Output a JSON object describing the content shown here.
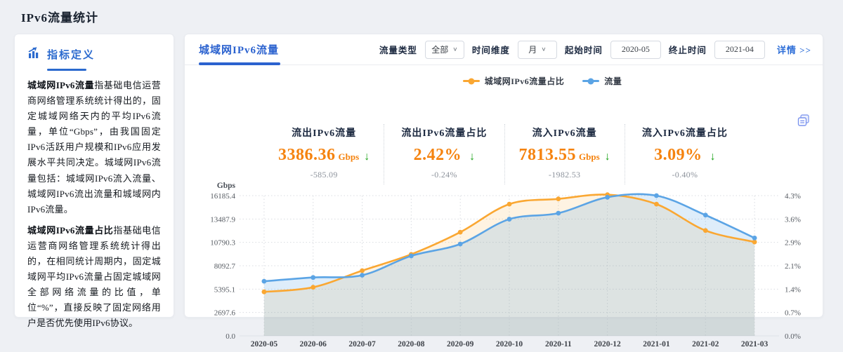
{
  "page_title": "IPv6流量统计",
  "sidebar": {
    "title": "指标定义",
    "paragraphs": [
      {
        "term": "城域网IPv6流量",
        "text": "指基础电信运营商网络管理系统统计得出的，固定城域网络天内的平均IPv6流量，单位“Gbps”，由我国固定IPv6活跃用户规模和IPv6应用发展水平共同决定。城域网IPv6流量包括：城域网IPv6流入流量、城域网IPv6流出流量和城域网内IPv6流量。"
      },
      {
        "term": "城域网IPv6流量占比",
        "text": "指基础电信运营商网络管理系统统计得出的，在相同统计周期内，固定城域网平均IPv6流量占固定城域网全部网络流量的比值，单位“%”，直接反映了固定网络用户是否优先使用IPv6协议。"
      }
    ]
  },
  "panel": {
    "tab": "城域网IPv6流量",
    "filters": [
      {
        "label": "流量类型",
        "value": "全部",
        "type": "select"
      },
      {
        "label": "时间维度",
        "value": "月",
        "type": "select"
      },
      {
        "label": "起始时间",
        "value": "2020-05",
        "type": "input"
      },
      {
        "label": "终止时间",
        "value": "2021-04",
        "type": "input"
      }
    ],
    "detail_link": "详情 >>",
    "legend": [
      {
        "label": "城域网IPv6流量占比",
        "color": "#FAA732"
      },
      {
        "label": "流量",
        "color": "#5BA4E5"
      }
    ],
    "cards": [
      {
        "title": "流出IPv6流量",
        "value": "3386.36",
        "unit": "Gbps",
        "arrow": "↓",
        "delta": "-585.09"
      },
      {
        "title": "流出IPv6流量占比",
        "value": "2.42%",
        "unit": "",
        "arrow": "↓",
        "delta": "-0.24%"
      },
      {
        "title": "流入IPv6流量",
        "value": "7813.55",
        "unit": "Gbps",
        "arrow": "↓",
        "delta": "-1982.53"
      },
      {
        "title": "流入IPv6流量占比",
        "value": "3.09%",
        "unit": "",
        "arrow": "↓",
        "delta": "-0.40%"
      }
    ]
  },
  "chart_data": {
    "type": "line",
    "x": [
      "2020-05",
      "2020-06",
      "2020-07",
      "2020-08",
      "2020-09",
      "2020-10",
      "2020-11",
      "2020-12",
      "2021-01",
      "2021-02",
      "2021-03"
    ],
    "series": [
      {
        "name": "城域网IPv6流量占比",
        "axis": "right",
        "unit": "%",
        "color": "#FAA732",
        "fill": "rgba(250,167,50,0.14)",
        "values": [
          1.35,
          1.49,
          2.0,
          2.5,
          3.18,
          4.04,
          4.2,
          4.33,
          4.04,
          3.23,
          2.88
        ]
      },
      {
        "name": "流量",
        "axis": "left",
        "unit": "Gbps",
        "color": "#5BA4E5",
        "fill": "rgba(91,164,229,0.20)",
        "values": [
          6300,
          6740,
          7000,
          9230,
          10600,
          13470,
          14160,
          16000,
          16185.4,
          13940,
          11300
        ]
      }
    ],
    "left_axis": {
      "title": "Gbps",
      "max": 16185.4,
      "ticks": [
        "0.0",
        "2697.6",
        "5395.1",
        "8092.7",
        "10790.3",
        "13487.9",
        "16185.4"
      ]
    },
    "right_axis": {
      "max": 4.3,
      "ticks": [
        "0.0%",
        "0.7%",
        "1.4%",
        "2.1%",
        "2.9%",
        "3.6%",
        "4.3%"
      ]
    },
    "grid": "dotted",
    "legend_position": "top-center",
    "smooth": true
  }
}
